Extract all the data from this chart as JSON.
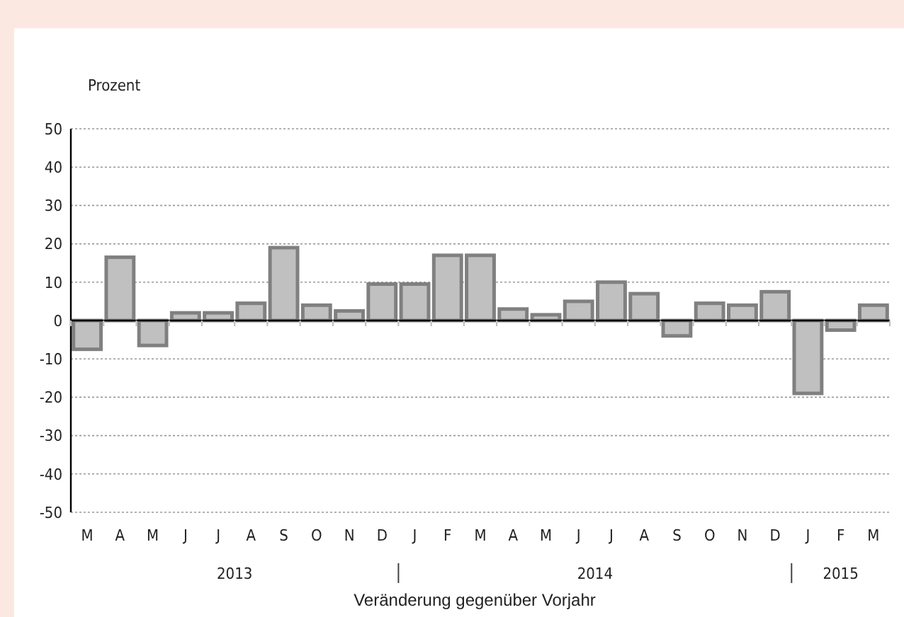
{
  "chart_data": {
    "type": "bar",
    "ylabel": "Prozent",
    "xlabel": "Veränderung gegenüber Vorjahr",
    "categories": [
      "M",
      "A",
      "M",
      "J",
      "J",
      "A",
      "S",
      "O",
      "N",
      "D",
      "J",
      "F",
      "M",
      "A",
      "M",
      "J",
      "J",
      "A",
      "S",
      "O",
      "N",
      "D",
      "J",
      "F",
      "M"
    ],
    "values": [
      -7.5,
      16.5,
      -6.5,
      2,
      2,
      4.5,
      19,
      4,
      2.5,
      9.5,
      9.5,
      17,
      17,
      3,
      1.5,
      5,
      10,
      7,
      -4,
      4.5,
      4,
      7.5,
      -19,
      -2.5,
      4
    ],
    "color": "#c0c0c0",
    "ylim": [
      -50,
      50
    ],
    "yticks": [
      -50,
      -40,
      -30,
      -20,
      -10,
      0,
      10,
      20,
      30,
      40,
      50
    ],
    "grid": "y",
    "annotations": [
      "2013",
      "2014",
      "2015"
    ]
  }
}
